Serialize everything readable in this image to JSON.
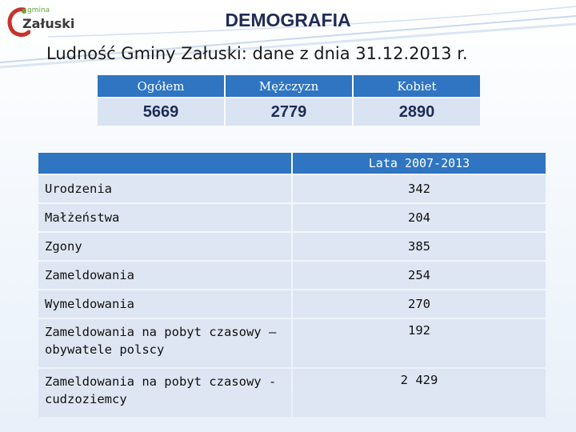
{
  "logo": {
    "small_text": "gmina",
    "big_text": "Załuski"
  },
  "header": {
    "title": "DEMOGRAFIA",
    "subtitle": "Ludność Gminy Załuski: dane z dnia 31.12.2013 r."
  },
  "summary": {
    "headers": [
      "Ogółem",
      "Mężczyzn",
      "Kobiet"
    ],
    "values": [
      "5669",
      "2779",
      "2890"
    ]
  },
  "stats": {
    "column_header": "Lata 2007-2013",
    "rows": [
      {
        "label": "Urodzenia",
        "value": "342"
      },
      {
        "label": "Małżeństwa",
        "value": "204"
      },
      {
        "label": "Zgony",
        "value": "385"
      },
      {
        "label": "Zameldowania",
        "value": "254"
      },
      {
        "label": "Wymeldowania",
        "value": "270"
      },
      {
        "label": "Zameldowania na pobyt czasowy – obywatele polscy",
        "value": "192"
      },
      {
        "label": "Zameldowania na pobyt czasowy - cudzoziemcy",
        "value": "2 429"
      }
    ]
  },
  "colors": {
    "header_blue": "#2f75c1",
    "cell_light": "#dde6f2",
    "title_navy": "#1f2c56",
    "logo_green": "#6aa33a",
    "logo_red": "#c8322b"
  }
}
